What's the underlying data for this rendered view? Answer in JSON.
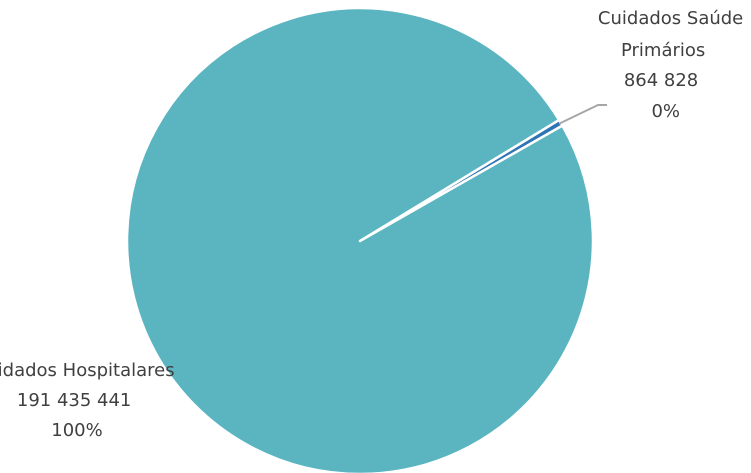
{
  "chart_data": {
    "type": "pie",
    "slices": [
      {
        "label_lines": [
          "Cuidados Hospitalares",
          "191 435 441",
          "100%"
        ],
        "name": "Cuidados Hospitalares",
        "value": 191435441,
        "value_text": "191 435 441",
        "percent_text": "100%",
        "color": "#5ab5c1"
      },
      {
        "label_lines": [
          "Cuidados Saúde",
          "Primários",
          "864 828",
          "0%"
        ],
        "name": "Cuidados Saúde Primários",
        "value": 864828,
        "value_text": "864 828",
        "percent_text": "0%",
        "color": "#2f75b5"
      }
    ],
    "leader_line_color": "#a6a6a6"
  }
}
